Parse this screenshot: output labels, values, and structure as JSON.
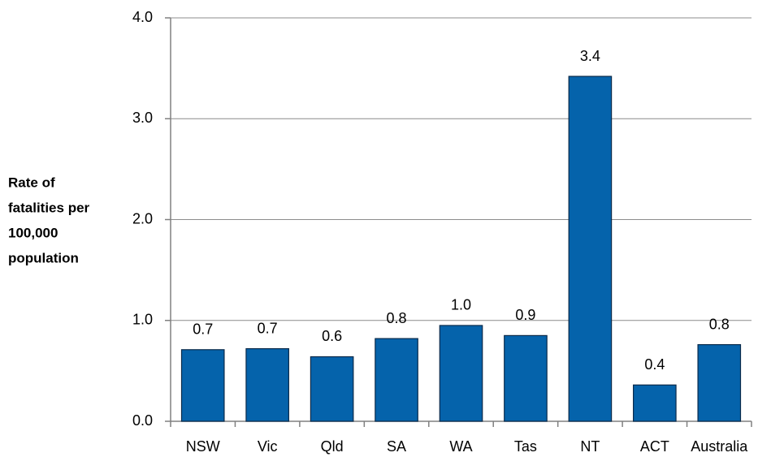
{
  "chart_data": {
    "type": "bar",
    "ylabel": [
      "Rate of",
      "fatalities per",
      "100,000",
      "population"
    ],
    "categories": [
      "NSW",
      "Vic",
      "Qld",
      "SA",
      "WA",
      "Tas",
      "NT",
      "ACT",
      "Australia"
    ],
    "values": [
      0.71,
      0.72,
      0.64,
      0.82,
      0.95,
      0.85,
      3.42,
      0.36,
      0.76
    ],
    "value_labels": [
      "0.7",
      "0.7",
      "0.6",
      "0.8",
      "1.0",
      "0.9",
      "3.4",
      "0.4",
      "0.8"
    ],
    "color": "#0563ab",
    "ylim": [
      0,
      4
    ],
    "yticks": [
      {
        "value": 0,
        "label": "0.0"
      },
      {
        "value": 1,
        "label": "1.0"
      },
      {
        "value": 2,
        "label": "2.0"
      },
      {
        "value": 3,
        "label": "3.0"
      },
      {
        "value": 4,
        "label": "4.0"
      }
    ],
    "grid": true
  }
}
